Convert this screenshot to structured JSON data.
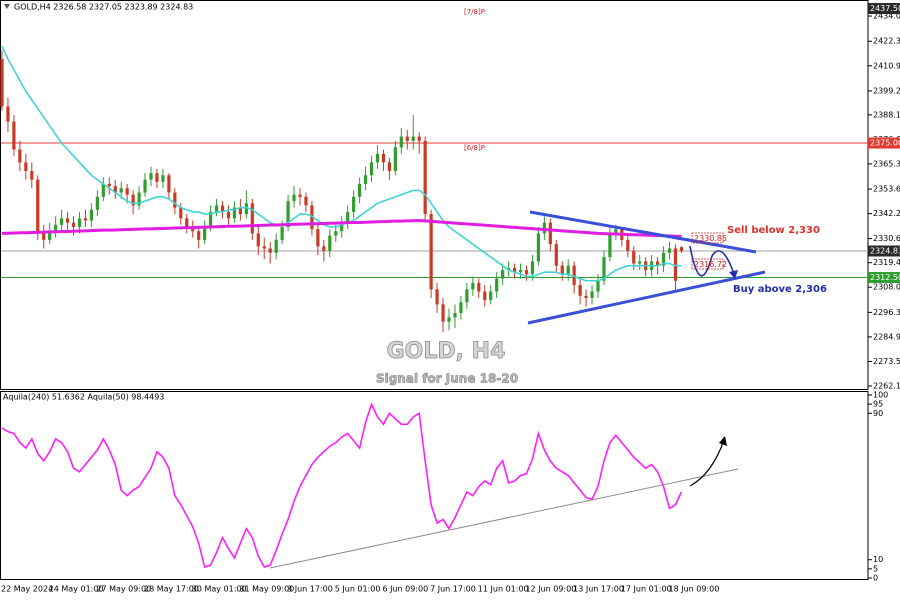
{
  "chart_data": [
    {
      "type": "candlestick",
      "title": "GOLD,H4  2326.58 2327.05 2323.89 2324.83",
      "categories": [
        "22 May 2024",
        null,
        null,
        null,
        null,
        null,
        null,
        null,
        "24 May 01:00",
        null,
        null,
        null,
        null,
        null,
        null,
        null,
        "27 May 09:00",
        null,
        null,
        null,
        null,
        null,
        null,
        null,
        "28 May 17:00",
        null,
        null,
        null,
        null,
        null,
        null,
        null,
        "30 May 01:00",
        null,
        null,
        null,
        null,
        null,
        null,
        null,
        "31 May 09:00",
        null,
        null,
        null,
        null,
        null,
        null,
        null,
        "3 Jun 17:00",
        null,
        null,
        null,
        null,
        null,
        null,
        null,
        "5 Jun 01:00",
        null,
        null,
        null,
        null,
        null,
        null,
        null,
        "6 Jun 09:00",
        null,
        null,
        null,
        null,
        null,
        null,
        null,
        "7 Jun 17:00",
        null,
        null,
        null,
        null,
        null,
        null,
        null,
        "11 Jun 01:00",
        null,
        null,
        null,
        null,
        null,
        null,
        null,
        "12 Jun 09:00",
        null,
        null,
        null,
        null,
        null,
        null,
        null,
        "13 Jun 17:00",
        null,
        null,
        null,
        null,
        null,
        null,
        null,
        "17 Jun 01:00",
        null,
        null,
        null,
        null,
        null,
        null,
        null,
        "18 Jun 09:00",
        null,
        null
      ],
      "open": [
        2414,
        2392,
        2385,
        2372,
        2366,
        2362,
        2358,
        2333,
        2330,
        2334,
        2337,
        2340,
        2338,
        2336,
        2340,
        2339,
        2344,
        2350,
        2356,
        2355,
        2352,
        2354,
        2351,
        2346,
        2352,
        2358,
        2361,
        2357,
        2360,
        2352,
        2345,
        2340,
        2336,
        2334,
        2330,
        2336,
        2343,
        2346,
        2343,
        2340,
        2345,
        2342,
        2347,
        2333,
        2327,
        2326,
        2324,
        2330,
        2336,
        2348,
        2351,
        2350,
        2346,
        2335,
        2327,
        2325,
        2332,
        2334,
        2338,
        2343,
        2350,
        2356,
        2360,
        2366,
        2370,
        2366,
        2362,
        2373,
        2378,
        2376,
        2378,
        2376,
        2342,
        2307,
        2300,
        2292,
        2294,
        2296,
        2301,
        2307,
        2310,
        2306,
        2302,
        2306,
        2312,
        2316,
        2317,
        2315,
        2316,
        2314,
        2320,
        2333,
        2338,
        2328,
        2318,
        2314,
        2318,
        2309,
        2304,
        2303,
        2306,
        2311,
        2322,
        2333,
        2335,
        2330,
        2325,
        2319,
        2320,
        2316,
        2320,
        2318,
        2324,
        2326,
        2326.58
      ],
      "high": [
        2418,
        2396,
        2388,
        2376,
        2370,
        2366,
        2360,
        2337,
        2338,
        2341,
        2344,
        2343,
        2341,
        2343,
        2344,
        2347,
        2353,
        2359,
        2359,
        2358,
        2357,
        2356,
        2353,
        2355,
        2361,
        2364,
        2363,
        2363,
        2361,
        2354,
        2347,
        2342,
        2339,
        2336,
        2339,
        2346,
        2349,
        2348,
        2346,
        2348,
        2349,
        2353,
        2349,
        2336,
        2331,
        2329,
        2333,
        2339,
        2351,
        2355,
        2354,
        2352,
        2348,
        2337,
        2330,
        2335,
        2337,
        2341,
        2346,
        2353,
        2359,
        2364,
        2369,
        2374,
        2372,
        2368,
        2376,
        2382,
        2381,
        2388,
        2380,
        2378,
        2344,
        2310,
        2303,
        2298,
        2300,
        2304,
        2310,
        2313,
        2312,
        2309,
        2309,
        2315,
        2319,
        2320,
        2319,
        2319,
        2318,
        2323,
        2336,
        2341,
        2340,
        2330,
        2320,
        2321,
        2320,
        2312,
        2307,
        2309,
        2314,
        2325,
        2336,
        2337,
        2336,
        2332,
        2327,
        2323,
        2322,
        2323,
        2322,
        2327,
        2329,
        2328,
        2327.05
      ],
      "low": [
        2390,
        2380,
        2369,
        2362,
        2358,
        2354,
        2330,
        2326,
        2328,
        2331,
        2334,
        2334,
        2332,
        2333,
        2336,
        2336,
        2341,
        2348,
        2351,
        2349,
        2349,
        2347,
        2342,
        2344,
        2350,
        2355,
        2354,
        2354,
        2349,
        2342,
        2337,
        2333,
        2331,
        2326,
        2328,
        2334,
        2341,
        2340,
        2337,
        2338,
        2339,
        2340,
        2330,
        2323,
        2321,
        2319,
        2321,
        2328,
        2334,
        2345,
        2346,
        2343,
        2332,
        2323,
        2320,
        2322,
        2329,
        2331,
        2335,
        2340,
        2347,
        2353,
        2357,
        2363,
        2362,
        2358,
        2360,
        2370,
        2372,
        2372,
        2370,
        2338,
        2303,
        2296,
        2287,
        2288,
        2289,
        2293,
        2298,
        2304,
        2303,
        2299,
        2300,
        2303,
        2309,
        2313,
        2312,
        2312,
        2311,
        2311,
        2318,
        2330,
        2325,
        2315,
        2311,
        2311,
        2305,
        2300,
        2299,
        2300,
        2303,
        2309,
        2320,
        2330,
        2327,
        2322,
        2316,
        2316,
        2313,
        2313,
        2314,
        2315,
        2321,
        2306,
        2323.89
      ],
      "close": [
        2392,
        2385,
        2372,
        2366,
        2362,
        2358,
        2333,
        2330,
        2334,
        2337,
        2340,
        2338,
        2336,
        2340,
        2339,
        2344,
        2350,
        2356,
        2355,
        2352,
        2354,
        2351,
        2346,
        2352,
        2358,
        2361,
        2357,
        2360,
        2352,
        2345,
        2340,
        2336,
        2334,
        2330,
        2336,
        2343,
        2346,
        2343,
        2340,
        2345,
        2342,
        2347,
        2333,
        2327,
        2326,
        2324,
        2330,
        2336,
        2348,
        2351,
        2350,
        2346,
        2335,
        2327,
        2325,
        2332,
        2334,
        2338,
        2343,
        2350,
        2356,
        2360,
        2366,
        2370,
        2366,
        2362,
        2373,
        2378,
        2376,
        2378,
        2376,
        2342,
        2307,
        2300,
        2292,
        2294,
        2296,
        2301,
        2307,
        2310,
        2306,
        2302,
        2306,
        2312,
        2316,
        2317,
        2315,
        2316,
        2314,
        2320,
        2333,
        2338,
        2328,
        2318,
        2314,
        2318,
        2309,
        2304,
        2303,
        2306,
        2311,
        2322,
        2333,
        2335,
        2330,
        2325,
        2319,
        2320,
        2316,
        2320,
        2318,
        2324,
        2326,
        2311,
        2324.83
      ],
      "up_color": "#2f9e2f",
      "down_color": "#c83a24",
      "series": [
        {
          "color": "#3fd4d4",
          "values": [
            2420,
            2414,
            2409,
            2404,
            2399,
            2395,
            2391,
            2387,
            2383,
            2379,
            2375,
            2372,
            2369,
            2366,
            2363,
            2360,
            2358,
            2356,
            2354,
            2352,
            2350,
            2348,
            2347,
            2347,
            2348,
            2349,
            2350,
            2350,
            2349,
            2347,
            2345,
            2344,
            2343,
            2343,
            2342,
            2342,
            2343,
            2343,
            2344,
            2344,
            2345,
            2345,
            2344,
            2342,
            2340,
            2338,
            2337,
            2337,
            2338,
            2340,
            2342,
            2342,
            2341,
            2339,
            2337,
            2336,
            2336,
            2337,
            2338,
            2339,
            2341,
            2343,
            2345,
            2347,
            2348,
            2349,
            2350,
            2351,
            2352,
            2353,
            2353,
            2351,
            2347,
            2343,
            2339,
            2336,
            2334,
            2332,
            2330,
            2328,
            2326,
            2324,
            2322,
            2320,
            2318,
            2316,
            2315,
            2314,
            2313,
            2313,
            2314,
            2315,
            2315,
            2315,
            2314,
            2314,
            2313,
            2312,
            2311,
            2311,
            2311,
            2312,
            2314,
            2316,
            2317,
            2318,
            2318,
            2318,
            2318,
            2318,
            2318,
            2319,
            2319,
            2318,
            2318
          ]
        },
        {
          "color": "#e01ee0",
          "values": [
            2333.0,
            2333.1,
            2333.2,
            2333.3,
            2333.3,
            2333.4,
            2333.5,
            2333.6,
            2333.7,
            2333.8,
            2333.9,
            2333.9,
            2334.0,
            2334.1,
            2334.2,
            2334.3,
            2334.4,
            2334.5,
            2334.5,
            2334.6,
            2334.7,
            2334.8,
            2334.9,
            2335.0,
            2335.1,
            2335.1,
            2335.2,
            2335.3,
            2335.4,
            2335.5,
            2335.6,
            2335.7,
            2335.7,
            2335.8,
            2335.9,
            2336.0,
            2336.1,
            2336.2,
            2336.3,
            2336.3,
            2336.4,
            2336.5,
            2336.6,
            2336.7,
            2336.8,
            2336.9,
            2336.9,
            2337.0,
            2337.1,
            2337.2,
            2337.3,
            2337.4,
            2337.5,
            2337.5,
            2337.6,
            2337.7,
            2337.8,
            2337.9,
            2338.0,
            2338.1,
            2338.1,
            2338.2,
            2338.3,
            2338.4,
            2338.5,
            2338.6,
            2338.7,
            2338.7,
            2338.8,
            2338.9,
            2339.0,
            2338.8,
            2338.6,
            2338.4,
            2338.2,
            2338.0,
            2337.8,
            2337.6,
            2337.4,
            2337.2,
            2337.0,
            2336.8,
            2336.6,
            2336.4,
            2336.2,
            2336.0,
            2335.8,
            2335.6,
            2335.4,
            2335.2,
            2335.0,
            2334.8,
            2334.6,
            2334.4,
            2334.2,
            2334.0,
            2333.8,
            2333.6,
            2333.4,
            2333.2,
            2333.0,
            2332.9,
            2332.8,
            2332.7,
            2332.6,
            2332.5,
            2332.4,
            2332.3,
            2332.2,
            2332.1,
            2332.0,
            2331.9,
            2331.8,
            2331.7,
            2331.6
          ]
        }
      ],
      "ylim": [
        2260.7,
        2441.0
      ],
      "yticks": [
        {
          "value": 2434.0,
          "label": "2434.00"
        },
        {
          "value": 2422.3,
          "label": "2422.30"
        },
        {
          "value": 2410.9,
          "label": "2410.90"
        },
        {
          "value": 2399.2,
          "label": "2399.20"
        },
        {
          "value": 2388.1,
          "label": "2388.10"
        },
        {
          "value": 2376.6,
          "label": "2376.60"
        },
        {
          "value": 2365.3,
          "label": "2365.30"
        },
        {
          "value": 2353.6,
          "label": "2353.60"
        },
        {
          "value": 2342.2,
          "label": "2342.20"
        },
        {
          "value": 2330.6,
          "label": "2330.60"
        },
        {
          "value": 2319.4,
          "label": "2319.40"
        },
        {
          "value": 2308.0,
          "label": "2308.00"
        },
        {
          "value": 2296.3,
          "label": "2296.30"
        },
        {
          "value": 2284.9,
          "label": "2284.90"
        },
        {
          "value": 2273.5,
          "label": "2273.50"
        },
        {
          "value": 2262.1,
          "label": "2262.10"
        }
      ],
      "levels": [
        {
          "value": 2437.5,
          "label": "2437.50",
          "color": "#2a2a2a",
          "line": false
        },
        {
          "value": 2375.0,
          "label": "2375.00",
          "color": "#e03a30",
          "line": true
        },
        {
          "value": 2324.83,
          "label": "2324.83",
          "color": "#2a2a2a",
          "line": true
        },
        {
          "value": 2312.5,
          "label": "2312.50",
          "color": "#2f9e2f",
          "line": true
        }
      ],
      "annotations": [
        "[7/8]P",
        "[6/8]P",
        "2330.85",
        "2316.72",
        "Sell below 2,330",
        "Buy above 2,306",
        "GOLD, H4",
        "Signal for June 18-20"
      ]
    },
    {
      "type": "line",
      "title": "Aquila(240) 51.6362  Aquila(50) 98.4493",
      "series": [
        {
          "color": "#ff1eff",
          "values": [
            82,
            80,
            79,
            74,
            71,
            76,
            68,
            64,
            69,
            76,
            74,
            69,
            60,
            58,
            62,
            66,
            70,
            76,
            70,
            62,
            48,
            45,
            48,
            50,
            55,
            60,
            69,
            66,
            60,
            45,
            40,
            34,
            28,
            19,
            6,
            7,
            14,
            22,
            16,
            11,
            19,
            27,
            22,
            12,
            6,
            7,
            15,
            24,
            32,
            42,
            50,
            56,
            62,
            66,
            69,
            72,
            74,
            77,
            79,
            75,
            71,
            85,
            95,
            88,
            84,
            90,
            87,
            84,
            84,
            88,
            90,
            64,
            40,
            30,
            32,
            27,
            33,
            40,
            47,
            45,
            50,
            53,
            51,
            60,
            64,
            52,
            53,
            56,
            57,
            65,
            79,
            70,
            64,
            60,
            58,
            56,
            52,
            48,
            44,
            43,
            50,
            64,
            74,
            78,
            74,
            70,
            66,
            63,
            60,
            62,
            58,
            50,
            38,
            40,
            47
          ]
        }
      ],
      "ylim": [
        0,
        100
      ],
      "yticks": [
        100,
        95,
        90,
        10,
        5,
        0
      ]
    }
  ]
}
